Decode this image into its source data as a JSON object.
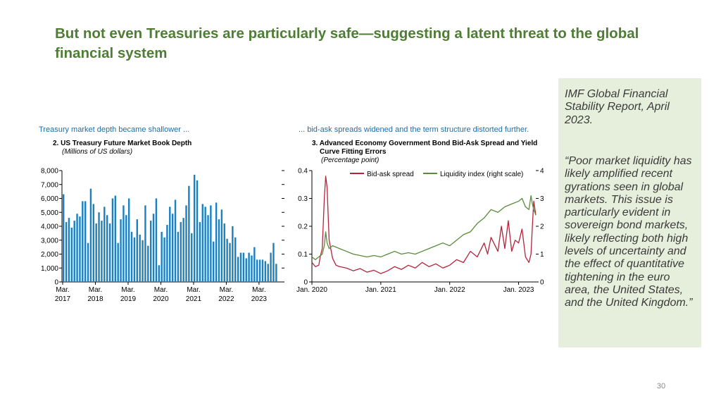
{
  "slide": {
    "title": "But not even Treasuries are particularly safe—suggesting a latent threat to the global financial system",
    "source": "IMF Global Financial Stability Report, April 2023.",
    "quote": "“Poor market liquidity has likely amplified recent gyrations seen in global markets. This issue is particularly evident in sovereign bond markets, likely reflecting both high levels of uncertainty and the effect of quantitative tightening in the euro area, the United States, and the United Kingdom.”",
    "page_number": "30"
  },
  "colors": {
    "title": "#4e7d35",
    "bar": "#1a80c4",
    "header": "#1c6fa8",
    "bid_ask": "#b5233b",
    "liquidity": "#5a8a3a"
  },
  "chart_data": [
    {
      "type": "bar",
      "header": "Treasury market depth became shallower ...",
      "title": "2. US Treasury Future Market Book Depth",
      "subtitle": "(Millions of US dollars)",
      "ylim": [
        0,
        8000
      ],
      "yticks": [
        "0",
        "1,000",
        "2,000",
        "3,000",
        "4,000",
        "5,000",
        "6,000",
        "7,000",
        "8,000"
      ],
      "xticks": [
        {
          "label": [
            "Mar.",
            "2017"
          ],
          "index": 0
        },
        {
          "label": [
            "Mar.",
            "2018"
          ],
          "index": 12
        },
        {
          "label": [
            "Mar.",
            "2019"
          ],
          "index": 24
        },
        {
          "label": [
            "Mar.",
            "2020"
          ],
          "index": 36
        },
        {
          "label": [
            "Mar.",
            "2021"
          ],
          "index": 48
        },
        {
          "label": [
            "Mar.",
            "2022"
          ],
          "index": 60
        },
        {
          "label": [
            "Mar.",
            "2023"
          ],
          "index": 72
        }
      ],
      "values": [
        6300,
        4300,
        4600,
        3900,
        4400,
        4900,
        4700,
        5800,
        5800,
        2800,
        6700,
        5600,
        4200,
        5000,
        4400,
        5400,
        4800,
        4200,
        6000,
        6200,
        2800,
        4500,
        5500,
        4800,
        6000,
        3600,
        3200,
        4500,
        3400,
        3000,
        5500,
        2600,
        4400,
        4900,
        6000,
        1200,
        3600,
        3200,
        4100,
        5400,
        4900,
        5900,
        3600,
        4300,
        4600,
        5500,
        6900,
        3500,
        7700,
        7300,
        4300,
        5600,
        5400,
        4800,
        5500,
        2900,
        5700,
        4500,
        5200,
        4200,
        3100,
        2800,
        4000,
        3200,
        1800,
        2100,
        2100,
        1700,
        2100,
        1900,
        2500,
        1600,
        1600,
        1600,
        1500,
        1300,
        2100,
        2800,
        1300
      ]
    },
    {
      "type": "line",
      "header": "... bid-ask spreads widened and the term structure distorted further.",
      "title": [
        "3. Advanced Economy Government Bond Bid-Ask Spread and Yield",
        "Curve Fitting Errors"
      ],
      "subtitle": "(Percentage point)",
      "ylim": [
        0,
        0.4
      ],
      "yticks": [
        "0",
        "0.1",
        "0.2",
        "0.3",
        "0.4"
      ],
      "y2lim": [
        0,
        4
      ],
      "y2ticks": [
        "0",
        "1",
        "2",
        "3",
        "4"
      ],
      "xticks": [
        "Jan. 2020",
        "Jan. 2021",
        "Jan. 2022",
        "Jan. 2023"
      ],
      "x_range": [
        2020.0,
        2023.25
      ],
      "series": [
        {
          "name": "Bid-ask spread",
          "axis": "left",
          "points": [
            [
              2020.0,
              0.07
            ],
            [
              2020.05,
              0.055
            ],
            [
              2020.1,
              0.06
            ],
            [
              2020.12,
              0.09
            ],
            [
              2020.15,
              0.12
            ],
            [
              2020.18,
              0.3
            ],
            [
              2020.2,
              0.38
            ],
            [
              2020.22,
              0.34
            ],
            [
              2020.25,
              0.15
            ],
            [
              2020.3,
              0.085
            ],
            [
              2020.35,
              0.06
            ],
            [
              2020.4,
              0.055
            ],
            [
              2020.5,
              0.05
            ],
            [
              2020.6,
              0.04
            ],
            [
              2020.7,
              0.048
            ],
            [
              2020.8,
              0.035
            ],
            [
              2020.9,
              0.042
            ],
            [
              2021.0,
              0.03
            ],
            [
              2021.1,
              0.04
            ],
            [
              2021.2,
              0.055
            ],
            [
              2021.3,
              0.045
            ],
            [
              2021.4,
              0.06
            ],
            [
              2021.5,
              0.05
            ],
            [
              2021.6,
              0.07
            ],
            [
              2021.7,
              0.055
            ],
            [
              2021.8,
              0.065
            ],
            [
              2021.9,
              0.05
            ],
            [
              2022.0,
              0.06
            ],
            [
              2022.1,
              0.08
            ],
            [
              2022.2,
              0.07
            ],
            [
              2022.3,
              0.11
            ],
            [
              2022.4,
              0.09
            ],
            [
              2022.5,
              0.14
            ],
            [
              2022.55,
              0.1
            ],
            [
              2022.6,
              0.16
            ],
            [
              2022.7,
              0.11
            ],
            [
              2022.75,
              0.2
            ],
            [
              2022.8,
              0.12
            ],
            [
              2022.85,
              0.22
            ],
            [
              2022.9,
              0.11
            ],
            [
              2022.95,
              0.15
            ],
            [
              2023.0,
              0.14
            ],
            [
              2023.05,
              0.19
            ],
            [
              2023.1,
              0.09
            ],
            [
              2023.15,
              0.07
            ],
            [
              2023.18,
              0.1
            ],
            [
              2023.2,
              0.2
            ],
            [
              2023.22,
              0.29
            ],
            [
              2023.25,
              0.24
            ]
          ]
        },
        {
          "name": "Liquidity index (right scale)",
          "axis": "right",
          "points": [
            [
              2020.0,
              0.9
            ],
            [
              2020.05,
              0.8
            ],
            [
              2020.1,
              0.9
            ],
            [
              2020.15,
              1.0
            ],
            [
              2020.18,
              1.3
            ],
            [
              2020.2,
              1.8
            ],
            [
              2020.22,
              1.4
            ],
            [
              2020.25,
              1.2
            ],
            [
              2020.3,
              1.3
            ],
            [
              2020.4,
              1.2
            ],
            [
              2020.5,
              1.1
            ],
            [
              2020.6,
              1.0
            ],
            [
              2020.7,
              0.95
            ],
            [
              2020.8,
              0.9
            ],
            [
              2020.9,
              0.95
            ],
            [
              2021.0,
              0.9
            ],
            [
              2021.1,
              1.0
            ],
            [
              2021.2,
              1.1
            ],
            [
              2021.3,
              1.0
            ],
            [
              2021.4,
              1.05
            ],
            [
              2021.5,
              1.0
            ],
            [
              2021.6,
              1.1
            ],
            [
              2021.7,
              1.2
            ],
            [
              2021.8,
              1.3
            ],
            [
              2021.9,
              1.4
            ],
            [
              2022.0,
              1.3
            ],
            [
              2022.1,
              1.5
            ],
            [
              2022.2,
              1.7
            ],
            [
              2022.3,
              1.8
            ],
            [
              2022.4,
              2.1
            ],
            [
              2022.5,
              2.3
            ],
            [
              2022.6,
              2.6
            ],
            [
              2022.7,
              2.5
            ],
            [
              2022.8,
              2.7
            ],
            [
              2022.9,
              2.8
            ],
            [
              2023.0,
              2.9
            ],
            [
              2023.05,
              3.0
            ],
            [
              2023.1,
              2.7
            ],
            [
              2023.15,
              2.6
            ],
            [
              2023.18,
              3.1
            ],
            [
              2023.2,
              2.8
            ],
            [
              2023.22,
              2.6
            ],
            [
              2023.25,
              2.4
            ]
          ]
        }
      ]
    }
  ]
}
